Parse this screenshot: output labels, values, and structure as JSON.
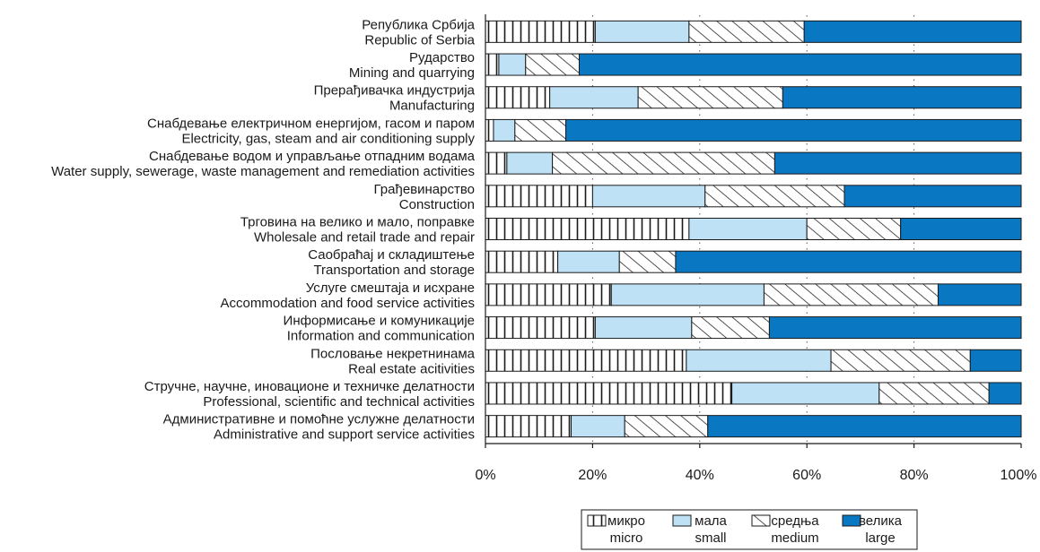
{
  "chart_data": {
    "type": "bar",
    "orientation": "horizontal",
    "stacked": true,
    "percent": true,
    "categories": [
      [
        "Република Србија",
        "Republic of Serbia"
      ],
      [
        "Рударство",
        "Mining and quarrying"
      ],
      [
        "Прерађивачка индустрија",
        "Manufacturing"
      ],
      [
        "Снабдевање електричном енергијом, гасом и паром",
        "Electricity, gas, steam and air conditioning supply"
      ],
      [
        "Снабдевање водом и управљање отпадним водама",
        "Water supply, sewerage, waste management and remediation activities"
      ],
      [
        "Грађевинарство",
        "Construction"
      ],
      [
        "Трговина на велико и мало, поправке",
        "Wholesale and retail trade and repair"
      ],
      [
        "Саобраћај и складиштење",
        "Transportation and  storage"
      ],
      [
        "Услуге смештаја и исхране",
        "Accommodation and food service activities"
      ],
      [
        "Информисање и комуникације",
        "Information and communication"
      ],
      [
        "Пословање некретнинама",
        "Real estate acitivities"
      ],
      [
        "Стручне, научне, иновационе и техничке делатности",
        "Professional, scientific and technical activities"
      ],
      [
        "Административне и помоћне услужне делатности",
        "Administrative and support service activities"
      ]
    ],
    "series": [
      {
        "name": [
          "микро",
          "micro"
        ],
        "pattern": "vertical-hatch",
        "values": [
          20.5,
          2.5,
          12,
          1.5,
          4,
          20,
          38,
          13.5,
          23.5,
          20.5,
          37.5,
          46,
          16
        ]
      },
      {
        "name": [
          "мала",
          "small"
        ],
        "pattern": "solid-light-blue",
        "values": [
          17.5,
          5,
          16.5,
          4,
          8.5,
          21,
          22,
          11.5,
          28.5,
          18,
          27,
          27.5,
          10
        ]
      },
      {
        "name": [
          "средња",
          "medium"
        ],
        "pattern": "diagonal-hatch",
        "values": [
          21.5,
          10,
          27,
          9.5,
          41.5,
          26,
          17.5,
          10.5,
          32.5,
          14.5,
          26,
          20.5,
          15.5
        ]
      },
      {
        "name": [
          "велика",
          "large"
        ],
        "pattern": "solid-blue",
        "values": [
          40.5,
          82.5,
          44.5,
          85,
          46,
          33,
          22.5,
          64.5,
          15.5,
          47,
          9.5,
          6,
          58.5
        ]
      }
    ],
    "xlim": [
      0,
      100
    ],
    "x_ticks": [
      "0%",
      "20%",
      "40%",
      "60%",
      "80%",
      "100%"
    ],
    "grid": "vertical dotted lines at 20, 40, 60, 80",
    "legend_position": "bottom-right",
    "colors": {
      "light_blue": "#bfe1f6",
      "blue": "#0a77c3",
      "hatch": "#1a1a1a",
      "border": "#1a1a1a"
    }
  }
}
